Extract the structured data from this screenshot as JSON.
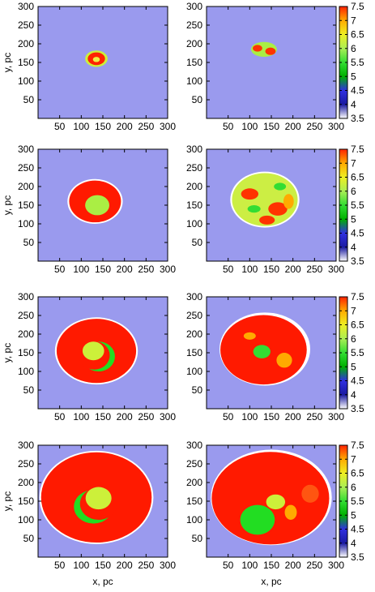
{
  "chart_data": {
    "type": "heatmap",
    "xlabel": "x, pc",
    "ylabel": "y, pc",
    "xlim": [
      0,
      300
    ],
    "ylim": [
      0,
      300
    ],
    "x_ticks": [
      50,
      100,
      150,
      200,
      250,
      300
    ],
    "y_ticks": [
      50,
      100,
      150,
      200,
      250,
      300
    ],
    "colorbar": {
      "range": [
        3.5,
        7.5
      ],
      "ticks": [
        "7.5",
        "7",
        "6.5",
        "6",
        "5.5",
        "5",
        "4.5",
        "4",
        "3.5"
      ],
      "colors": [
        "#ffffff",
        "#1a1aa0",
        "#3030e0",
        "#00b000",
        "#33dd33",
        "#aaee55",
        "#eeee22",
        "#ffaa00",
        "#ff2200"
      ]
    },
    "colors": {
      "background": "#9a9aee",
      "red": "#ff1a00",
      "green": "#22dd22",
      "lime": "#ccf03a",
      "yellow": "#eeee22",
      "white": "#ffffff"
    },
    "panels": [
      {
        "row": 0,
        "col": 0,
        "features": [
          {
            "kind": "ellipse",
            "cx": 135,
            "cy": 160,
            "rx": 26,
            "ry": 22,
            "fill": "#ccf03a"
          },
          {
            "kind": "ellipse",
            "cx": 135,
            "cy": 160,
            "rx": 20,
            "ry": 17,
            "fill": "#ff2200"
          },
          {
            "kind": "ellipse",
            "cx": 135,
            "cy": 158,
            "rx": 8,
            "ry": 7,
            "fill": "#eeee44"
          }
        ]
      },
      {
        "row": 0,
        "col": 1,
        "features": [
          {
            "kind": "ellipse",
            "cx": 133,
            "cy": 185,
            "rx": 30,
            "ry": 20,
            "fill": "#aaee44"
          },
          {
            "kind": "ellipse",
            "cx": 118,
            "cy": 188,
            "rx": 11,
            "ry": 9,
            "fill": "#ff3300"
          },
          {
            "kind": "ellipse",
            "cx": 148,
            "cy": 180,
            "rx": 12,
            "ry": 10,
            "fill": "#ff3300"
          }
        ]
      },
      {
        "row": 1,
        "col": 0,
        "features": [
          {
            "kind": "ellipse",
            "cx": 132,
            "cy": 160,
            "rx": 64,
            "ry": 60,
            "fill": "#ffffff"
          },
          {
            "kind": "ellipse",
            "cx": 132,
            "cy": 160,
            "rx": 60,
            "ry": 56,
            "fill": "#ff1a00"
          },
          {
            "kind": "ellipse",
            "cx": 137,
            "cy": 150,
            "rx": 28,
            "ry": 27,
            "fill": "#aaee44"
          }
        ]
      },
      {
        "row": 1,
        "col": 1,
        "features": [
          {
            "kind": "ellipse",
            "cx": 135,
            "cy": 165,
            "rx": 80,
            "ry": 75,
            "fill": "#ffffff"
          },
          {
            "kind": "ellipse",
            "cx": 135,
            "cy": 165,
            "rx": 76,
            "ry": 71,
            "fill": "#ccee44"
          },
          {
            "kind": "ellipse",
            "cx": 100,
            "cy": 180,
            "rx": 20,
            "ry": 15,
            "fill": "#ff3300"
          },
          {
            "kind": "ellipse",
            "cx": 165,
            "cy": 140,
            "rx": 22,
            "ry": 18,
            "fill": "#ff3300"
          },
          {
            "kind": "ellipse",
            "cx": 140,
            "cy": 110,
            "rx": 18,
            "ry": 12,
            "fill": "#ff3300"
          },
          {
            "kind": "ellipse",
            "cx": 110,
            "cy": 140,
            "rx": 15,
            "ry": 10,
            "fill": "#33dd33"
          },
          {
            "kind": "ellipse",
            "cx": 170,
            "cy": 200,
            "rx": 14,
            "ry": 10,
            "fill": "#33dd33"
          },
          {
            "kind": "ellipse",
            "cx": 190,
            "cy": 160,
            "rx": 12,
            "ry": 20,
            "fill": "#ffaa00"
          }
        ]
      },
      {
        "row": 2,
        "col": 0,
        "features": [
          {
            "kind": "ellipse",
            "cx": 135,
            "cy": 155,
            "rx": 96,
            "ry": 90,
            "fill": "#ffffff"
          },
          {
            "kind": "ellipse",
            "cx": 135,
            "cy": 155,
            "rx": 92,
            "ry": 86,
            "fill": "#ff1a00"
          },
          {
            "kind": "ellipse",
            "cx": 140,
            "cy": 140,
            "rx": 38,
            "ry": 40,
            "fill": "#22dd22"
          },
          {
            "kind": "ellipse",
            "cx": 130,
            "cy": 143,
            "rx": 36,
            "ry": 38,
            "fill": "#ff1a00"
          },
          {
            "kind": "ellipse",
            "cx": 128,
            "cy": 155,
            "rx": 25,
            "ry": 25,
            "fill": "#ccf03a"
          }
        ]
      },
      {
        "row": 2,
        "col": 1,
        "features": [
          {
            "kind": "ellipse",
            "cx": 135,
            "cy": 160,
            "rx": 105,
            "ry": 98,
            "fill": "#ffffff"
          },
          {
            "kind": "ellipse",
            "cx": 132,
            "cy": 158,
            "rx": 100,
            "ry": 93,
            "fill": "#ff1a00"
          },
          {
            "kind": "ellipse",
            "cx": 128,
            "cy": 153,
            "rx": 20,
            "ry": 18,
            "fill": "#33dd33"
          },
          {
            "kind": "ellipse",
            "cx": 180,
            "cy": 130,
            "rx": 18,
            "ry": 20,
            "fill": "#ffaa00"
          },
          {
            "kind": "ellipse",
            "cx": 100,
            "cy": 195,
            "rx": 14,
            "ry": 10,
            "fill": "#ffaa00"
          }
        ]
      },
      {
        "row": 3,
        "col": 0,
        "features": [
          {
            "kind": "ellipse",
            "cx": 135,
            "cy": 160,
            "rx": 132,
            "ry": 125,
            "fill": "#ffffff"
          },
          {
            "kind": "ellipse",
            "cx": 135,
            "cy": 160,
            "rx": 128,
            "ry": 121,
            "fill": "#ff1a00"
          },
          {
            "kind": "ellipse",
            "cx": 128,
            "cy": 135,
            "rx": 45,
            "ry": 45,
            "fill": "#22dd22"
          },
          {
            "kind": "ellipse",
            "cx": 140,
            "cy": 143,
            "rx": 43,
            "ry": 43,
            "fill": "#ff1a00"
          },
          {
            "kind": "ellipse",
            "cx": 140,
            "cy": 158,
            "rx": 30,
            "ry": 30,
            "fill": "#ccf03a"
          }
        ]
      },
      {
        "row": 3,
        "col": 1,
        "features": [
          {
            "kind": "ellipse",
            "cx": 150,
            "cy": 160,
            "rx": 140,
            "ry": 128,
            "fill": "#ffffff"
          },
          {
            "kind": "ellipse",
            "cx": 148,
            "cy": 158,
            "rx": 136,
            "ry": 124,
            "fill": "#ff1a00"
          },
          {
            "kind": "ellipse",
            "cx": 118,
            "cy": 100,
            "rx": 40,
            "ry": 40,
            "fill": "#22dd22"
          },
          {
            "kind": "ellipse",
            "cx": 160,
            "cy": 148,
            "rx": 22,
            "ry": 20,
            "fill": "#ccf03a"
          },
          {
            "kind": "ellipse",
            "cx": 195,
            "cy": 120,
            "rx": 14,
            "ry": 20,
            "fill": "#ffaa00"
          },
          {
            "kind": "ellipse",
            "cx": 240,
            "cy": 170,
            "rx": 20,
            "ry": 24,
            "fill": "#ff5511"
          }
        ]
      }
    ]
  }
}
